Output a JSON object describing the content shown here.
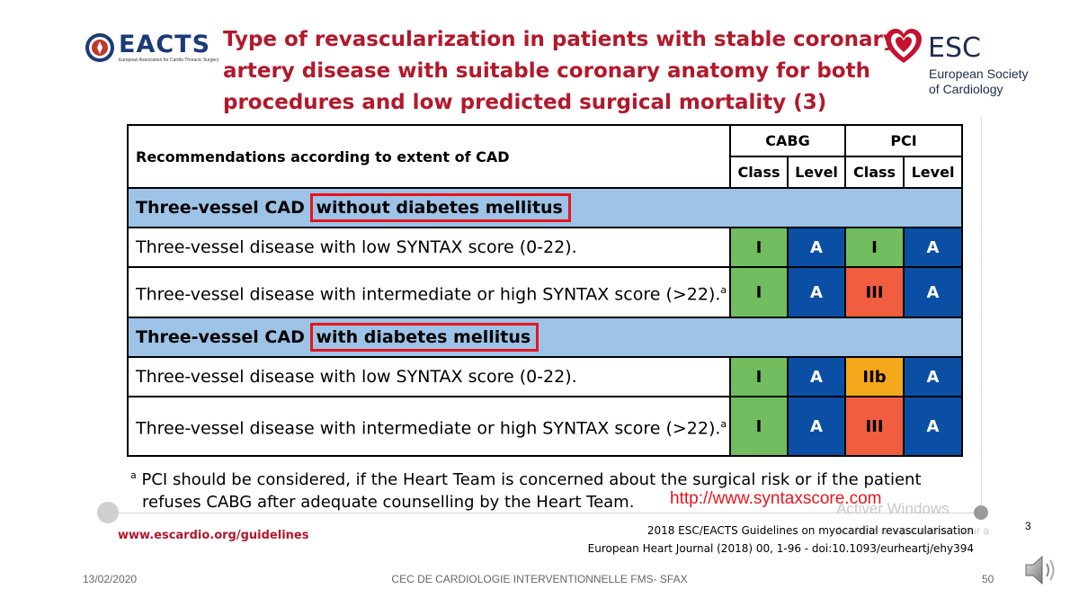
{
  "title_lines": [
    "Type of revascularization in patients with stable coronary",
    "artery disease with suitable coronary anatomy for both",
    "procedures and low predicted surgical mortality (3)"
  ],
  "logos": {
    "eacts_word": "EACTS",
    "eacts_subtitle": "European Association for Cardio-Thoracic Surgery",
    "esc_word": "ESC",
    "esc_sub1": "European Society",
    "esc_sub2": "of Cardiology"
  },
  "table": {
    "header_left": "Recommendations according to extent of CAD",
    "cabg": "CABG",
    "pci": "PCI",
    "class": "Class",
    "level": "Level",
    "sections": [
      {
        "prefix": "Three-vessel CAD",
        "highlight": "without diabetes mellitus",
        "rows": [
          {
            "text": "Three-vessel disease with low SYNTAX score (0-22).",
            "sup": "",
            "cabg_class": "I",
            "cabg_level": "A",
            "pci_class": "I",
            "pci_level": "A"
          },
          {
            "text": "Three-vessel disease with intermediate or high SYNTAX score (>22).",
            "sup": "a",
            "cabg_class": "I",
            "cabg_level": "A",
            "pci_class": "III",
            "pci_level": "A"
          }
        ]
      },
      {
        "prefix": "Three-vessel CAD",
        "highlight": "with diabetes mellitus",
        "rows": [
          {
            "text": "Three-vessel disease with low SYNTAX score (0-22).",
            "sup": "",
            "cabg_class": "I",
            "cabg_level": "A",
            "pci_class": "IIb",
            "pci_level": "A"
          },
          {
            "text": "Three-vessel disease with intermediate or high SYNTAX score (>22).",
            "sup": "a",
            "cabg_class": "I",
            "cabg_level": "A",
            "pci_class": "III",
            "pci_level": "A"
          }
        ]
      }
    ]
  },
  "footnote": {
    "marker": "a",
    "line1": "PCI should be considered, if the Heart Team is concerned about the surgical risk or if the patient",
    "line2": "refuses CABG after adequate counselling by the Heart Team."
  },
  "syntax_link": "http://www.syntaxscore.com",
  "watermark": {
    "line1": "Activer Windows",
    "line2": "Accédez aux paramètres pour a"
  },
  "slide_number_small": "3",
  "esc_url": "www.escardio.org/guidelines",
  "citation_line1": "2018 ESC/EACTS Guidelines on myocardial revascularisation",
  "citation_line2": "European Heart Journal (2018) 00, 1-96 - doi:10.1093/eurheartj/ehy394",
  "footer": {
    "date": "13/02/2020",
    "center": "CEC DE CARDIOLOGIE INTERVENTIONNELLE FMS- SFAX",
    "page": "50"
  },
  "colors": {
    "title": "#b3182b",
    "section_bg": "#9dc3e6",
    "class_I": "#71bd5f",
    "level_A": "#0b4fa4",
    "class_III": "#f05e3f",
    "class_IIb": "#f4a81c",
    "highlight_border": "#e8151b"
  },
  "icons": {
    "speaker": "speaker-icon",
    "esc_heart": "heart-icon",
    "eacts_seal": "seal-icon"
  }
}
